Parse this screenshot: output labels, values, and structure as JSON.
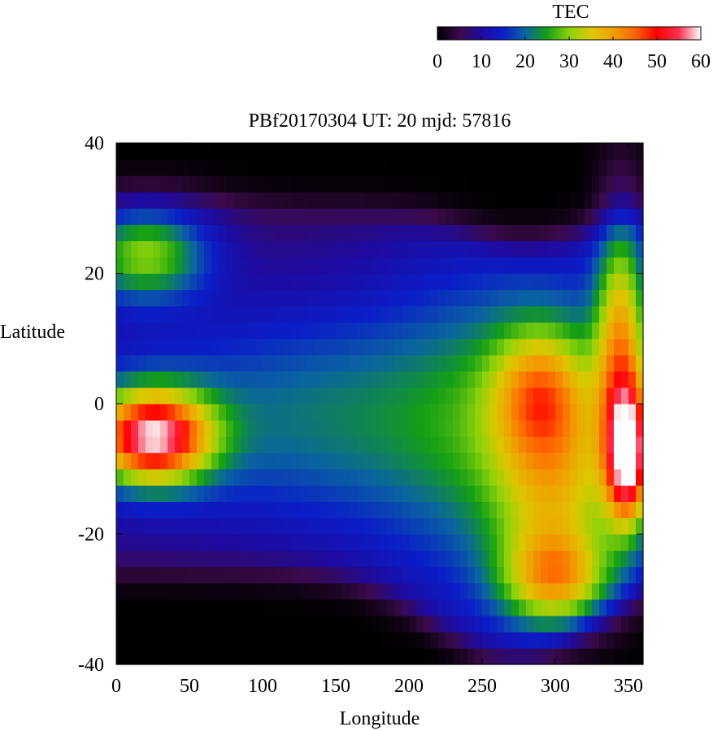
{
  "chart_data": {
    "type": "heatmap",
    "title": "PBf20170304  UT: 20  mjd: 57816",
    "xlabel": "Longitude",
    "ylabel": "Latitude",
    "xlim": [
      0,
      360
    ],
    "ylim": [
      -40,
      40
    ],
    "x_ticks": [
      0,
      50,
      100,
      150,
      200,
      250,
      300,
      350
    ],
    "y_ticks": [
      -40,
      -20,
      0,
      20,
      40
    ],
    "grid": false,
    "colorbar": {
      "label": "TEC",
      "range": [
        0,
        60
      ],
      "ticks": [
        0,
        10,
        20,
        30,
        40,
        50,
        60
      ],
      "placement": "top-right",
      "colors": [
        "#000000",
        "#3a0a4a",
        "#1e0aa0",
        "#0a1ec8",
        "#0a64a0",
        "#14a014",
        "#8cd20a",
        "#dcc800",
        "#f0a000",
        "#ff6400",
        "#ff0000",
        "#ff3250",
        "#ffffff"
      ]
    },
    "cell_size": {
      "dlon": 5,
      "dlat": 2.5
    },
    "features": [
      {
        "lon": 20,
        "lat": 23,
        "amp": 22,
        "sx": 30,
        "sy": 5
      },
      {
        "lon": 25,
        "lat": -5,
        "amp": 45,
        "sx": 28,
        "sy": 5
      },
      {
        "lon": 290,
        "lat": 2,
        "amp": 18,
        "sx": 22,
        "sy": 7
      },
      {
        "lon": 300,
        "lat": -14,
        "amp": 14,
        "sx": 28,
        "sy": 10
      },
      {
        "lon": 300,
        "lat": -27,
        "amp": 22,
        "sx": 26,
        "sy": 5
      },
      {
        "lon": 350,
        "lat": -8,
        "amp": 38,
        "sx": 10,
        "sy": 7
      },
      {
        "lon": 345,
        "lat": 10,
        "amp": 24,
        "sx": 12,
        "sy": 14
      }
    ]
  }
}
